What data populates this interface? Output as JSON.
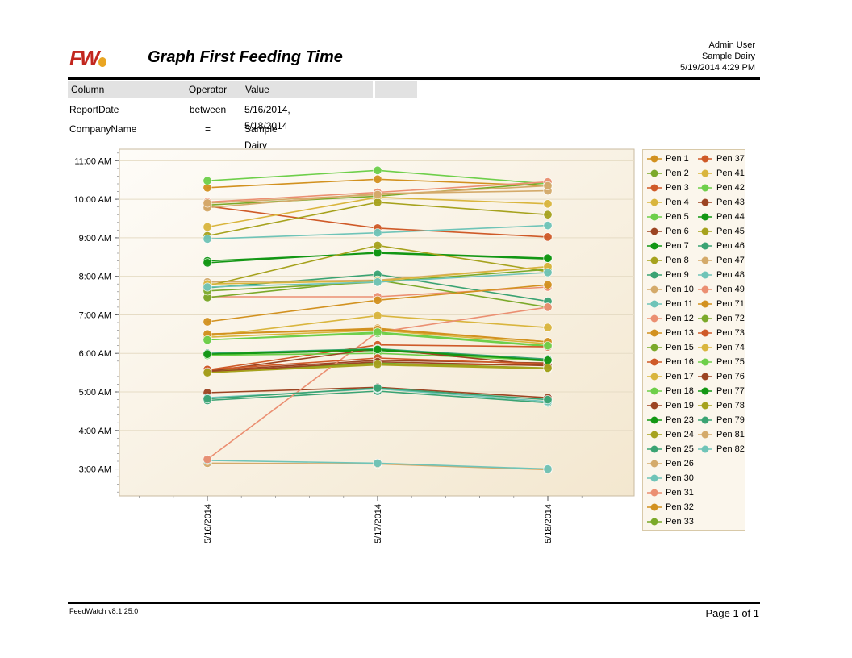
{
  "report": {
    "title": "Graph First Feeding Time",
    "user": "Admin User",
    "company": "Sample Dairy",
    "printed": "5/19/2014 4:29 PM",
    "footer_version": "FeedWatch v8.1.25.0",
    "footer_page": "Page 1 of 1"
  },
  "criteria": {
    "headers": [
      "Column",
      "Operator",
      "Value",
      ""
    ],
    "rows": [
      [
        "ReportDate",
        "between",
        "5/16/2014, 5/18/2014"
      ],
      [
        "CompanyName",
        "=",
        "Sample Dairy"
      ]
    ]
  },
  "colors": {
    "c_orange": "#d2911f",
    "c_olive": "#7ba92a",
    "c_red": "#cf5a28",
    "c_yellow": "#d9b53d",
    "c_lime": "#6ecf4a",
    "c_brown": "#9c4422",
    "c_green": "#139714",
    "c_mustard": "#a6a21d",
    "c_teal": "#3aa373",
    "c_tan": "#d4aa6a",
    "c_aqua": "#6fc4b8",
    "c_salmon": "#eb8f72"
  },
  "chart_data": {
    "type": "line",
    "x": [
      "5/16/2014",
      "5/17/2014",
      "5/18/2014"
    ],
    "ylim": [
      2.3,
      11.3
    ],
    "y_ticks": [
      3,
      4,
      5,
      6,
      7,
      8,
      9,
      10,
      11
    ],
    "y_tick_labels": [
      "3:00 AM",
      "4:00 AM",
      "5:00 AM",
      "6:00 AM",
      "7:00 AM",
      "8:00 AM",
      "9:00 AM",
      "10:00 AM",
      "11:00 AM"
    ],
    "grid": true,
    "legend": "right",
    "series": [
      {
        "name": "Pen 1",
        "color": "c_orange",
        "values": [
          10.3,
          10.52,
          10.35
        ]
      },
      {
        "name": "Pen 2",
        "color": "c_olive",
        "values": [
          9.85,
          10.08,
          10.42
        ]
      },
      {
        "name": "Pen 3",
        "color": "c_red",
        "values": [
          9.82,
          9.25,
          9.02
        ]
      },
      {
        "name": "Pen 4",
        "color": "c_yellow",
        "values": [
          9.28,
          10.05,
          9.88
        ]
      },
      {
        "name": "Pen 5",
        "color": "c_lime",
        "values": [
          10.48,
          10.75,
          10.4
        ]
      },
      {
        "name": "Pen 6",
        "color": "c_brown",
        "values": [
          5.55,
          5.82,
          5.75
        ]
      },
      {
        "name": "Pen 7",
        "color": "c_green",
        "values": [
          8.4,
          8.6,
          8.45
        ]
      },
      {
        "name": "Pen 8",
        "color": "c_mustard",
        "values": [
          9.05,
          9.92,
          9.6
        ]
      },
      {
        "name": "Pen 9",
        "color": "c_teal",
        "values": [
          7.7,
          8.05,
          7.35
        ]
      },
      {
        "name": "Pen 10",
        "color": "c_tan",
        "values": [
          7.85,
          7.9,
          8.25
        ]
      },
      {
        "name": "Pen 11",
        "color": "c_aqua",
        "values": [
          8.97,
          9.13,
          9.32
        ]
      },
      {
        "name": "Pen 12",
        "color": "c_salmon",
        "values": [
          7.47,
          7.47,
          7.72
        ]
      },
      {
        "name": "Pen 13",
        "color": "c_orange",
        "values": [
          6.5,
          6.65,
          6.3
        ]
      },
      {
        "name": "Pen 15",
        "color": "c_olive",
        "values": [
          7.45,
          7.9,
          7.2
        ]
      },
      {
        "name": "Pen 16",
        "color": "c_red",
        "values": [
          5.55,
          5.72,
          5.7
        ]
      },
      {
        "name": "Pen 17",
        "color": "c_yellow",
        "values": [
          6.45,
          6.98,
          6.67
        ]
      },
      {
        "name": "Pen 18",
        "color": "c_lime",
        "values": [
          6.35,
          6.52,
          6.18
        ]
      },
      {
        "name": "Pen 19",
        "color": "c_brown",
        "values": [
          4.98,
          5.12,
          4.85
        ]
      },
      {
        "name": "Pen 23",
        "color": "c_green",
        "values": [
          5.97,
          6.08,
          5.8
        ]
      },
      {
        "name": "Pen 24",
        "color": "c_mustard",
        "values": [
          5.5,
          5.7,
          5.6
        ]
      },
      {
        "name": "Pen 25",
        "color": "c_teal",
        "values": [
          4.78,
          5.02,
          4.72
        ]
      },
      {
        "name": "Pen 26",
        "color": "c_tan",
        "values": [
          3.15,
          3.13,
          2.98
        ]
      },
      {
        "name": "Pen 30",
        "color": "c_aqua",
        "values": [
          3.22,
          3.15,
          3.0
        ]
      },
      {
        "name": "Pen 31",
        "color": "c_salmon",
        "values": [
          3.25,
          6.55,
          7.2
        ]
      },
      {
        "name": "Pen 32",
        "color": "c_orange",
        "values": [
          6.82,
          7.38,
          7.78
        ]
      },
      {
        "name": "Pen 33",
        "color": "c_olive",
        "values": [
          5.53,
          5.75,
          5.62
        ]
      },
      {
        "name": "Pen 37",
        "color": "c_red",
        "values": [
          5.57,
          6.22,
          6.17
        ]
      },
      {
        "name": "Pen 41",
        "color": "c_yellow",
        "values": [
          6.42,
          6.6,
          6.25
        ]
      },
      {
        "name": "Pen 42",
        "color": "c_lime",
        "values": [
          5.95,
          6.0,
          5.82
        ]
      },
      {
        "name": "Pen 43",
        "color": "c_brown",
        "values": [
          5.53,
          6.12,
          5.68
        ]
      },
      {
        "name": "Pen 44",
        "color": "c_green",
        "values": [
          8.35,
          8.62,
          8.47
        ]
      },
      {
        "name": "Pen 45",
        "color": "c_mustard",
        "values": [
          7.75,
          8.8,
          8.12
        ]
      },
      {
        "name": "Pen 46",
        "color": "c_teal",
        "values": [
          6.0,
          6.12,
          5.85
        ]
      },
      {
        "name": "Pen 47",
        "color": "c_tan",
        "values": [
          9.78,
          10.15,
          10.22
        ]
      },
      {
        "name": "Pen 48",
        "color": "c_aqua",
        "values": [
          4.85,
          5.08,
          4.75
        ]
      },
      {
        "name": "Pen 49",
        "color": "c_salmon",
        "values": [
          9.93,
          10.18,
          10.45
        ]
      },
      {
        "name": "Pen 71",
        "color": "c_orange",
        "values": [
          6.5,
          6.62,
          6.3
        ]
      },
      {
        "name": "Pen 72",
        "color": "c_olive",
        "values": [
          7.62,
          7.85,
          8.18
        ]
      },
      {
        "name": "Pen 73",
        "color": "c_red",
        "values": [
          5.58,
          5.88,
          5.72
        ]
      },
      {
        "name": "Pen 74",
        "color": "c_yellow",
        "values": [
          7.8,
          7.88,
          8.25
        ]
      },
      {
        "name": "Pen 75",
        "color": "c_lime",
        "values": [
          6.35,
          6.55,
          6.2
        ]
      },
      {
        "name": "Pen 76",
        "color": "c_brown",
        "values": [
          5.52,
          5.78,
          5.68
        ]
      },
      {
        "name": "Pen 77",
        "color": "c_green",
        "values": [
          5.98,
          6.1,
          5.82
        ]
      },
      {
        "name": "Pen 78",
        "color": "c_mustard",
        "values": [
          5.5,
          5.72,
          5.62
        ]
      },
      {
        "name": "Pen 79",
        "color": "c_teal",
        "values": [
          4.82,
          5.1,
          4.8
        ]
      },
      {
        "name": "Pen 81",
        "color": "c_tan",
        "values": [
          9.9,
          10.12,
          10.35
        ]
      },
      {
        "name": "Pen 82",
        "color": "c_aqua",
        "values": [
          7.72,
          7.85,
          8.1
        ]
      }
    ]
  }
}
